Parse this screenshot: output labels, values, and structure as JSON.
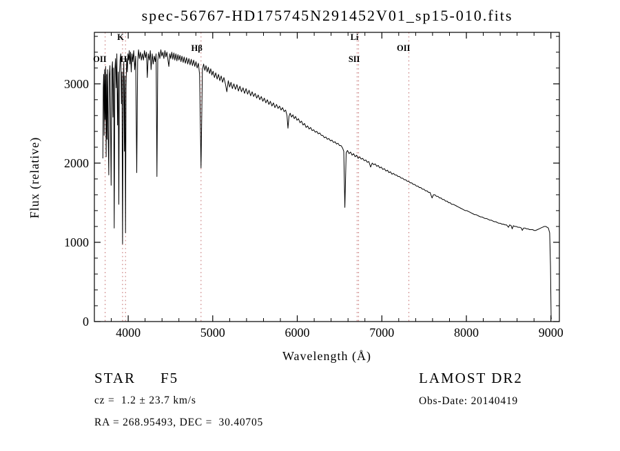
{
  "title": "spec-56767-HD175745N291452V01_sp15-010.fits",
  "footer": {
    "class_label": "STAR",
    "subclass": "F5",
    "survey": "LAMOST DR2",
    "cz": "cz =  1.2 ± 23.7 km/s",
    "obs_date": "Obs-Date: 20140419",
    "coords": "RA = 268.95493, DEC =  30.40705"
  },
  "chart_data": {
    "type": "line",
    "title": "spec-56767-HD175745N291452V01_sp15-010.fits",
    "xlabel": "Wavelength (Å)",
    "ylabel": "Flux (relative)",
    "xlim": [
      3600,
      9100
    ],
    "ylim": [
      0,
      3650
    ],
    "x_ticks": [
      4000,
      5000,
      6000,
      7000,
      8000,
      9000
    ],
    "y_ticks": [
      0,
      1000,
      2000,
      3000
    ],
    "major_x": 1000,
    "minor_x": 200,
    "major_y": 1000,
    "minor_y": 200,
    "grid": false,
    "line_color": "#000000",
    "marker_color": "#c87878",
    "legend": "none",
    "line_markers": [
      {
        "wavelength": 3727,
        "label": "OII",
        "row": 2
      },
      {
        "wavelength": 3933,
        "label": "K",
        "row": 0
      },
      {
        "wavelength": 3968,
        "label": "H",
        "row": 2
      },
      {
        "wavelength": 4861,
        "label": "Hβ",
        "row": 1
      },
      {
        "wavelength": 6708,
        "label": "Li",
        "row": 0
      },
      {
        "wavelength": 6725,
        "label": "SII",
        "row": 2
      },
      {
        "wavelength": 7320,
        "label": "OII",
        "row": 1
      }
    ],
    "series_name": "spectrum flux",
    "points": [
      [
        3700,
        2060
      ],
      [
        3705,
        2950
      ],
      [
        3710,
        3120
      ],
      [
        3716,
        2350
      ],
      [
        3721,
        3180
      ],
      [
        3727,
        2550
      ],
      [
        3733,
        3220
      ],
      [
        3739,
        2080
      ],
      [
        3745,
        3120
      ],
      [
        3750,
        2300
      ],
      [
        3756,
        3180
      ],
      [
        3762,
        2420
      ],
      [
        3770,
        1850
      ],
      [
        3776,
        3100
      ],
      [
        3784,
        3230
      ],
      [
        3790,
        2700
      ],
      [
        3798,
        1720
      ],
      [
        3806,
        3160
      ],
      [
        3814,
        3280
      ],
      [
        3820,
        2580
      ],
      [
        3827,
        3200
      ],
      [
        3835,
        1180
      ],
      [
        3843,
        3180
      ],
      [
        3850,
        3320
      ],
      [
        3858,
        2950
      ],
      [
        3866,
        3380
      ],
      [
        3874,
        2480
      ],
      [
        3882,
        3150
      ],
      [
        3889,
        1480
      ],
      [
        3896,
        3120
      ],
      [
        3904,
        3300
      ],
      [
        3912,
        3380
      ],
      [
        3920,
        2750
      ],
      [
        3926,
        3150
      ],
      [
        3933,
        980
      ],
      [
        3941,
        3050
      ],
      [
        3948,
        3280
      ],
      [
        3955,
        2150
      ],
      [
        3962,
        3100
      ],
      [
        3968,
        1120
      ],
      [
        3975,
        2950
      ],
      [
        3982,
        3320
      ],
      [
        3990,
        3150
      ],
      [
        3997,
        3380
      ],
      [
        4005,
        3300
      ],
      [
        4012,
        3420
      ],
      [
        4020,
        3250
      ],
      [
        4028,
        3400
      ],
      [
        4036,
        3150
      ],
      [
        4045,
        3380
      ],
      [
        4055,
        3280
      ],
      [
        4065,
        3420
      ],
      [
        4077,
        3180
      ],
      [
        4088,
        3350
      ],
      [
        4101,
        1880
      ],
      [
        4112,
        3280
      ],
      [
        4122,
        3430
      ],
      [
        4132,
        3320
      ],
      [
        4144,
        3400
      ],
      [
        4156,
        3300
      ],
      [
        4168,
        3380
      ],
      [
        4180,
        3300
      ],
      [
        4192,
        3420
      ],
      [
        4204,
        3330
      ],
      [
        4216,
        3400
      ],
      [
        4226,
        3080
      ],
      [
        4238,
        3380
      ],
      [
        4250,
        3300
      ],
      [
        4262,
        3420
      ],
      [
        4271,
        3180
      ],
      [
        4284,
        3380
      ],
      [
        4296,
        3250
      ],
      [
        4308,
        3350
      ],
      [
        4320,
        3280
      ],
      [
        4330,
        3380
      ],
      [
        4340,
        1830
      ],
      [
        4350,
        3300
      ],
      [
        4362,
        3400
      ],
      [
        4374,
        3320
      ],
      [
        4386,
        3430
      ],
      [
        4398,
        3350
      ],
      [
        4410,
        3400
      ],
      [
        4422,
        3320
      ],
      [
        4434,
        3420
      ],
      [
        4446,
        3340
      ],
      [
        4458,
        3400
      ],
      [
        4470,
        3300
      ],
      [
        4481,
        3220
      ],
      [
        4492,
        3380
      ],
      [
        4504,
        3320
      ],
      [
        4516,
        3400
      ],
      [
        4528,
        3310
      ],
      [
        4540,
        3390
      ],
      [
        4552,
        3300
      ],
      [
        4564,
        3380
      ],
      [
        4576,
        3290
      ],
      [
        4588,
        3370
      ],
      [
        4600,
        3300
      ],
      [
        4612,
        3360
      ],
      [
        4624,
        3280
      ],
      [
        4636,
        3350
      ],
      [
        4650,
        3270
      ],
      [
        4662,
        3340
      ],
      [
        4676,
        3260
      ],
      [
        4690,
        3330
      ],
      [
        4704,
        3250
      ],
      [
        4718,
        3320
      ],
      [
        4732,
        3240
      ],
      [
        4746,
        3310
      ],
      [
        4760,
        3230
      ],
      [
        4774,
        3300
      ],
      [
        4788,
        3220
      ],
      [
        4802,
        3280
      ],
      [
        4816,
        3200
      ],
      [
        4830,
        3260
      ],
      [
        4844,
        3120
      ],
      [
        4861,
        1940
      ],
      [
        4878,
        3180
      ],
      [
        4892,
        3250
      ],
      [
        4906,
        3170
      ],
      [
        4920,
        3230
      ],
      [
        4934,
        3150
      ],
      [
        4948,
        3210
      ],
      [
        4962,
        3130
      ],
      [
        4976,
        3190
      ],
      [
        4990,
        3110
      ],
      [
        5004,
        3160
      ],
      [
        5020,
        3080
      ],
      [
        5036,
        3140
      ],
      [
        5052,
        3060
      ],
      [
        5068,
        3120
      ],
      [
        5084,
        3040
      ],
      [
        5100,
        3100
      ],
      [
        5116,
        3020
      ],
      [
        5132,
        3080
      ],
      [
        5150,
        3000
      ],
      [
        5167,
        2900
      ],
      [
        5184,
        3040
      ],
      [
        5200,
        2960
      ],
      [
        5216,
        3020
      ],
      [
        5232,
        2940
      ],
      [
        5250,
        3000
      ],
      [
        5268,
        2930
      ],
      [
        5286,
        2990
      ],
      [
        5304,
        2910
      ],
      [
        5322,
        2970
      ],
      [
        5340,
        2900
      ],
      [
        5358,
        2950
      ],
      [
        5376,
        2880
      ],
      [
        5394,
        2940
      ],
      [
        5412,
        2870
      ],
      [
        5430,
        2920
      ],
      [
        5448,
        2850
      ],
      [
        5466,
        2900
      ],
      [
        5484,
        2840
      ],
      [
        5502,
        2880
      ],
      [
        5520,
        2820
      ],
      [
        5538,
        2860
      ],
      [
        5556,
        2800
      ],
      [
        5574,
        2840
      ],
      [
        5592,
        2780
      ],
      [
        5610,
        2820
      ],
      [
        5628,
        2760
      ],
      [
        5646,
        2800
      ],
      [
        5664,
        2740
      ],
      [
        5682,
        2780
      ],
      [
        5700,
        2720
      ],
      [
        5718,
        2760
      ],
      [
        5736,
        2700
      ],
      [
        5754,
        2740
      ],
      [
        5772,
        2690
      ],
      [
        5790,
        2720
      ],
      [
        5808,
        2670
      ],
      [
        5826,
        2700
      ],
      [
        5844,
        2650
      ],
      [
        5862,
        2670
      ],
      [
        5878,
        2600
      ],
      [
        5890,
        2440
      ],
      [
        5902,
        2590
      ],
      [
        5916,
        2630
      ],
      [
        5932,
        2580
      ],
      [
        5948,
        2610
      ],
      [
        5964,
        2560
      ],
      [
        5980,
        2590
      ],
      [
        5996,
        2540
      ],
      [
        6014,
        2560
      ],
      [
        6032,
        2510
      ],
      [
        6050,
        2530
      ],
      [
        6068,
        2480
      ],
      [
        6086,
        2500
      ],
      [
        6104,
        2450
      ],
      [
        6122,
        2470
      ],
      [
        6140,
        2430
      ],
      [
        6158,
        2450
      ],
      [
        6176,
        2410
      ],
      [
        6194,
        2420
      ],
      [
        6212,
        2390
      ],
      [
        6230,
        2400
      ],
      [
        6248,
        2370
      ],
      [
        6266,
        2380
      ],
      [
        6284,
        2350
      ],
      [
        6302,
        2350
      ],
      [
        6320,
        2320
      ],
      [
        6338,
        2330
      ],
      [
        6356,
        2300
      ],
      [
        6374,
        2310
      ],
      [
        6392,
        2280
      ],
      [
        6410,
        2290
      ],
      [
        6428,
        2260
      ],
      [
        6446,
        2270
      ],
      [
        6464,
        2240
      ],
      [
        6482,
        2250
      ],
      [
        6500,
        2220
      ],
      [
        6518,
        2220
      ],
      [
        6536,
        2190
      ],
      [
        6550,
        2150
      ],
      [
        6563,
        1440
      ],
      [
        6578,
        2130
      ],
      [
        6594,
        2160
      ],
      [
        6612,
        2120
      ],
      [
        6630,
        2140
      ],
      [
        6648,
        2100
      ],
      [
        6666,
        2120
      ],
      [
        6684,
        2080
      ],
      [
        6702,
        2100
      ],
      [
        6720,
        2060
      ],
      [
        6738,
        2080
      ],
      [
        6756,
        2050
      ],
      [
        6774,
        2060
      ],
      [
        6792,
        2030
      ],
      [
        6810,
        2040
      ],
      [
        6828,
        2010
      ],
      [
        6846,
        2020
      ],
      [
        6867,
        1950
      ],
      [
        6886,
        2000
      ],
      [
        6904,
        1980
      ],
      [
        6922,
        1990
      ],
      [
        6940,
        1960
      ],
      [
        6958,
        1970
      ],
      [
        6976,
        1940
      ],
      [
        6994,
        1950
      ],
      [
        7012,
        1920
      ],
      [
        7030,
        1930
      ],
      [
        7048,
        1900
      ],
      [
        7066,
        1910
      ],
      [
        7084,
        1880
      ],
      [
        7102,
        1890
      ],
      [
        7120,
        1860
      ],
      [
        7138,
        1870
      ],
      [
        7156,
        1850
      ],
      [
        7174,
        1850
      ],
      [
        7192,
        1830
      ],
      [
        7210,
        1830
      ],
      [
        7228,
        1810
      ],
      [
        7246,
        1810
      ],
      [
        7264,
        1790
      ],
      [
        7282,
        1790
      ],
      [
        7300,
        1770
      ],
      [
        7318,
        1770
      ],
      [
        7336,
        1750
      ],
      [
        7354,
        1750
      ],
      [
        7372,
        1730
      ],
      [
        7390,
        1730
      ],
      [
        7408,
        1710
      ],
      [
        7426,
        1710
      ],
      [
        7444,
        1690
      ],
      [
        7462,
        1690
      ],
      [
        7480,
        1670
      ],
      [
        7498,
        1670
      ],
      [
        7516,
        1650
      ],
      [
        7534,
        1650
      ],
      [
        7552,
        1630
      ],
      [
        7570,
        1630
      ],
      [
        7594,
        1560
      ],
      [
        7610,
        1600
      ],
      [
        7628,
        1600
      ],
      [
        7646,
        1580
      ],
      [
        7664,
        1580
      ],
      [
        7682,
        1560
      ],
      [
        7700,
        1560
      ],
      [
        7718,
        1540
      ],
      [
        7736,
        1540
      ],
      [
        7754,
        1520
      ],
      [
        7772,
        1520
      ],
      [
        7790,
        1500
      ],
      [
        7808,
        1500
      ],
      [
        7826,
        1480
      ],
      [
        7844,
        1480
      ],
      [
        7862,
        1470
      ],
      [
        7880,
        1460
      ],
      [
        7898,
        1450
      ],
      [
        7916,
        1440
      ],
      [
        7934,
        1430
      ],
      [
        7952,
        1420
      ],
      [
        7970,
        1410
      ],
      [
        7988,
        1400
      ],
      [
        8006,
        1400
      ],
      [
        8024,
        1390
      ],
      [
        8042,
        1380
      ],
      [
        8060,
        1370
      ],
      [
        8078,
        1360
      ],
      [
        8096,
        1350
      ],
      [
        8114,
        1350
      ],
      [
        8132,
        1340
      ],
      [
        8150,
        1330
      ],
      [
        8168,
        1320
      ],
      [
        8186,
        1320
      ],
      [
        8204,
        1310
      ],
      [
        8222,
        1300
      ],
      [
        8240,
        1300
      ],
      [
        8258,
        1290
      ],
      [
        8276,
        1280
      ],
      [
        8294,
        1280
      ],
      [
        8312,
        1270
      ],
      [
        8330,
        1260
      ],
      [
        8348,
        1260
      ],
      [
        8366,
        1250
      ],
      [
        8384,
        1240
      ],
      [
        8402,
        1240
      ],
      [
        8420,
        1230
      ],
      [
        8438,
        1230
      ],
      [
        8456,
        1220
      ],
      [
        8474,
        1220
      ],
      [
        8498,
        1190
      ],
      [
        8512,
        1220
      ],
      [
        8530,
        1210
      ],
      [
        8542,
        1170
      ],
      [
        8556,
        1210
      ],
      [
        8574,
        1200
      ],
      [
        8590,
        1200
      ],
      [
        8610,
        1190
      ],
      [
        8630,
        1190
      ],
      [
        8650,
        1180
      ],
      [
        8662,
        1150
      ],
      [
        8676,
        1180
      ],
      [
        8694,
        1180
      ],
      [
        8712,
        1170
      ],
      [
        8730,
        1170
      ],
      [
        8748,
        1160
      ],
      [
        8766,
        1160
      ],
      [
        8784,
        1160
      ],
      [
        8802,
        1150
      ],
      [
        8820,
        1150
      ],
      [
        8840,
        1160
      ],
      [
        8860,
        1170
      ],
      [
        8880,
        1180
      ],
      [
        8900,
        1190
      ],
      [
        8920,
        1200
      ],
      [
        8940,
        1200
      ],
      [
        8955,
        1190
      ],
      [
        8970,
        1180
      ],
      [
        8985,
        1120
      ],
      [
        8995,
        700
      ],
      [
        9002,
        60
      ],
      [
        9005,
        30
      ]
    ]
  }
}
